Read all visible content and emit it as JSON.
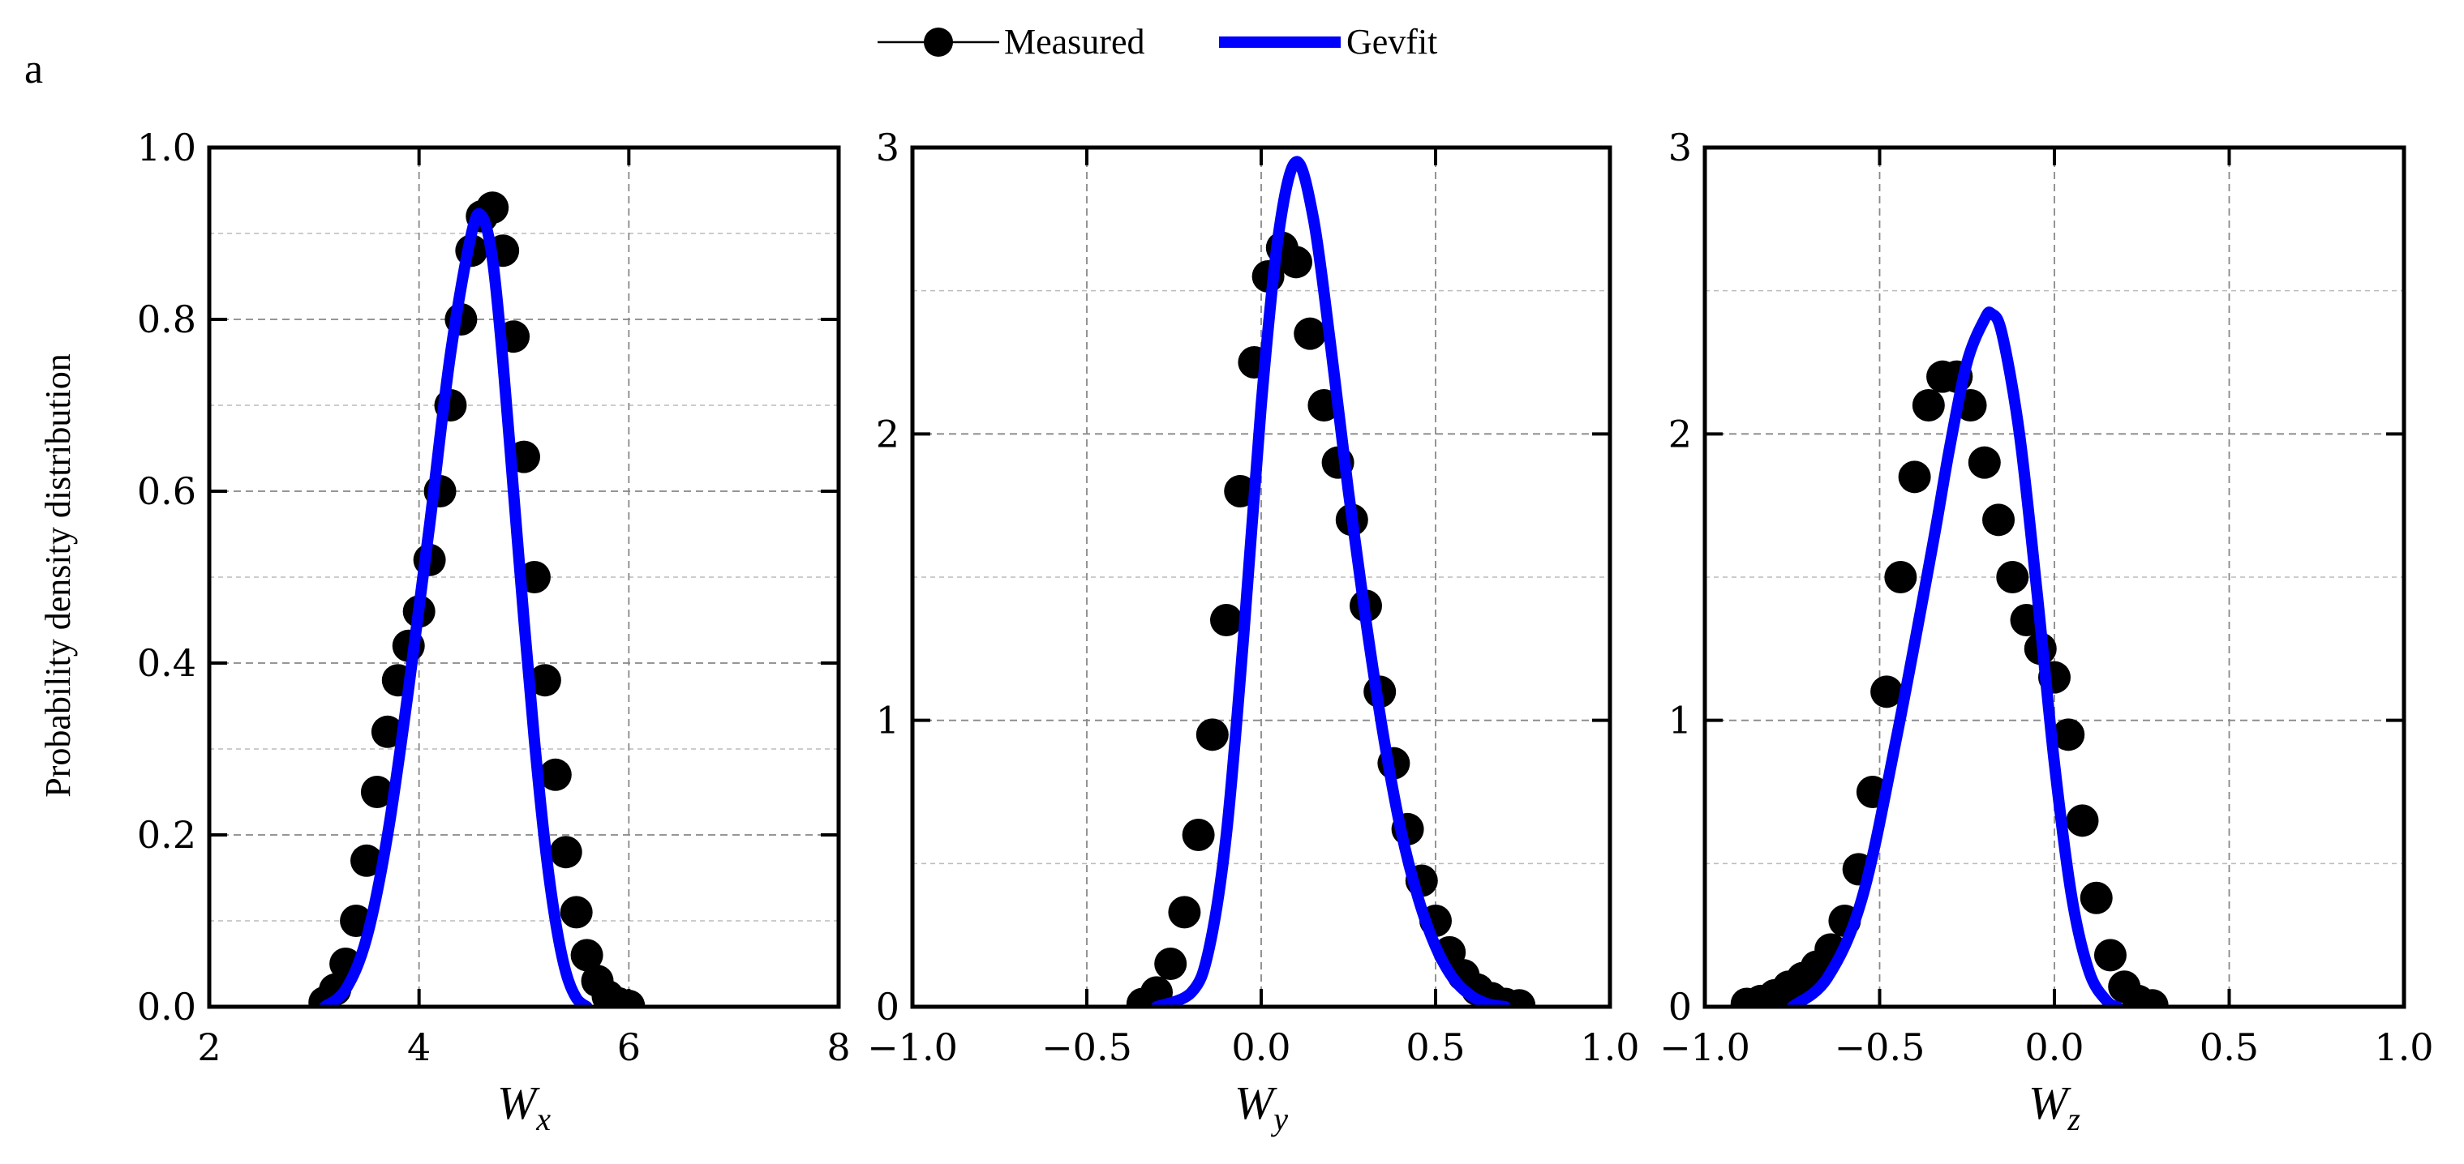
{
  "figure": {
    "panel_label": "a",
    "ylabel": "Probability density distribution",
    "legend": {
      "placement": "top-center",
      "entries": [
        {
          "label": "Measured",
          "marker": "filled-circle",
          "color": "#000000"
        },
        {
          "label": "Gevfit",
          "marker": "thick-line",
          "color": "#0000FF"
        }
      ]
    }
  },
  "chart_data": [
    {
      "type": "line",
      "title": "",
      "xlabel": "W",
      "xlabel_sub": "x",
      "ylabel": "Probability density distribution",
      "xlim": [
        2,
        8
      ],
      "ylim": [
        0,
        1.0
      ],
      "xticks": [
        2,
        4,
        6,
        8
      ],
      "xtick_labels": [
        "2",
        "4",
        "6",
        "8"
      ],
      "yticks": [
        0,
        0.2,
        0.4,
        0.6,
        0.8,
        1.0
      ],
      "ytick_labels": [
        "0.0",
        "0.2",
        "0.4",
        "0.6",
        "0.8",
        "1.0"
      ],
      "yminor": [
        0.1,
        0.3,
        0.5,
        0.7,
        0.9
      ],
      "grid": true,
      "series": [
        {
          "name": "Measured",
          "style": "markers",
          "color": "#000000",
          "x": [
            3.1,
            3.2,
            3.3,
            3.4,
            3.5,
            3.6,
            3.7,
            3.8,
            3.9,
            4.0,
            4.1,
            4.2,
            4.3,
            4.4,
            4.5,
            4.6,
            4.7,
            4.8,
            4.9,
            5.0,
            5.1,
            5.2,
            5.3,
            5.4,
            5.5,
            5.6,
            5.7,
            5.8,
            5.9,
            6.0
          ],
          "y": [
            0.005,
            0.02,
            0.05,
            0.1,
            0.17,
            0.25,
            0.32,
            0.38,
            0.42,
            0.46,
            0.52,
            0.6,
            0.7,
            0.8,
            0.88,
            0.92,
            0.93,
            0.88,
            0.78,
            0.64,
            0.5,
            0.38,
            0.27,
            0.18,
            0.11,
            0.06,
            0.03,
            0.012,
            0.004,
            0.001
          ]
        },
        {
          "name": "Gevfit",
          "style": "line",
          "color": "#0000FF",
          "x": [
            3.1,
            3.3,
            3.5,
            3.7,
            3.9,
            4.1,
            4.3,
            4.5,
            4.6,
            4.7,
            4.8,
            4.9,
            5.0,
            5.1,
            5.2,
            5.3,
            5.4,
            5.5,
            5.6
          ],
          "y": [
            0.0,
            0.02,
            0.08,
            0.2,
            0.37,
            0.56,
            0.76,
            0.9,
            0.92,
            0.87,
            0.75,
            0.6,
            0.45,
            0.31,
            0.19,
            0.1,
            0.04,
            0.01,
            0.0
          ]
        }
      ]
    },
    {
      "type": "line",
      "title": "",
      "xlabel": "W",
      "xlabel_sub": "y",
      "ylabel": "",
      "xlim": [
        -1.0,
        1.0
      ],
      "ylim": [
        0,
        3
      ],
      "xticks": [
        -1.0,
        -0.5,
        0.0,
        0.5,
        1.0
      ],
      "xtick_labels": [
        "−1.0",
        "−0.5",
        "0.0",
        "0.5",
        "1.0"
      ],
      "yticks": [
        0,
        1,
        2,
        3
      ],
      "ytick_labels": [
        "0",
        "1",
        "2",
        "3"
      ],
      "yminor": [
        0.5,
        1.5,
        2.5
      ],
      "grid": true,
      "series": [
        {
          "name": "Measured",
          "style": "markers",
          "color": "#000000",
          "x": [
            -0.34,
            -0.3,
            -0.26,
            -0.22,
            -0.18,
            -0.14,
            -0.1,
            -0.06,
            -0.02,
            0.02,
            0.06,
            0.1,
            0.14,
            0.18,
            0.22,
            0.26,
            0.3,
            0.34,
            0.38,
            0.42,
            0.46,
            0.5,
            0.54,
            0.58,
            0.62,
            0.66,
            0.7,
            0.74
          ],
          "y": [
            0.01,
            0.05,
            0.15,
            0.33,
            0.6,
            0.95,
            1.35,
            1.8,
            2.25,
            2.55,
            2.65,
            2.6,
            2.35,
            2.1,
            1.9,
            1.7,
            1.4,
            1.1,
            0.85,
            0.62,
            0.44,
            0.3,
            0.19,
            0.11,
            0.06,
            0.03,
            0.01,
            0.005
          ]
        },
        {
          "name": "Gevfit",
          "style": "line",
          "color": "#0000FF",
          "x": [
            -0.3,
            -0.2,
            -0.15,
            -0.1,
            -0.05,
            0.0,
            0.05,
            0.1,
            0.15,
            0.2,
            0.25,
            0.3,
            0.35,
            0.4,
            0.45,
            0.5,
            0.55,
            0.6,
            0.65,
            0.7
          ],
          "y": [
            0.0,
            0.05,
            0.2,
            0.6,
            1.3,
            2.1,
            2.7,
            2.95,
            2.75,
            2.3,
            1.8,
            1.35,
            0.95,
            0.62,
            0.38,
            0.21,
            0.1,
            0.04,
            0.01,
            0.0
          ]
        }
      ]
    },
    {
      "type": "line",
      "title": "",
      "xlabel": "W",
      "xlabel_sub": "z",
      "ylabel": "",
      "xlim": [
        -1.0,
        1.0
      ],
      "ylim": [
        0,
        3
      ],
      "xticks": [
        -1.0,
        -0.5,
        0.0,
        0.5,
        1.0
      ],
      "xtick_labels": [
        "−1.0",
        "−0.5",
        "0.0",
        "0.5",
        "1.0"
      ],
      "yticks": [
        0,
        1,
        2,
        3
      ],
      "ytick_labels": [
        "0",
        "1",
        "2",
        "3"
      ],
      "yminor": [
        0.5,
        1.5,
        2.5
      ],
      "grid": true,
      "series": [
        {
          "name": "Measured",
          "style": "markers",
          "color": "#000000",
          "x": [
            -0.88,
            -0.84,
            -0.8,
            -0.76,
            -0.72,
            -0.68,
            -0.64,
            -0.6,
            -0.56,
            -0.52,
            -0.48,
            -0.44,
            -0.4,
            -0.36,
            -0.32,
            -0.28,
            -0.24,
            -0.2,
            -0.16,
            -0.12,
            -0.08,
            -0.04,
            0.0,
            0.04,
            0.08,
            0.12,
            0.16,
            0.2,
            0.24,
            0.28
          ],
          "y": [
            0.01,
            0.02,
            0.04,
            0.07,
            0.1,
            0.14,
            0.2,
            0.3,
            0.48,
            0.75,
            1.1,
            1.5,
            1.85,
            2.1,
            2.2,
            2.2,
            2.1,
            1.9,
            1.7,
            1.5,
            1.35,
            1.25,
            1.15,
            0.95,
            0.65,
            0.38,
            0.18,
            0.07,
            0.02,
            0.005
          ]
        },
        {
          "name": "Gevfit",
          "style": "line",
          "color": "#0000FF",
          "x": [
            -0.75,
            -0.65,
            -0.55,
            -0.45,
            -0.35,
            -0.3,
            -0.25,
            -0.2,
            -0.18,
            -0.15,
            -0.1,
            -0.05,
            0.0,
            0.05,
            0.1,
            0.15,
            0.18
          ],
          "y": [
            0.0,
            0.1,
            0.38,
            0.95,
            1.6,
            1.95,
            2.25,
            2.4,
            2.42,
            2.35,
            2.0,
            1.45,
            0.85,
            0.38,
            0.12,
            0.02,
            0.0
          ]
        }
      ]
    }
  ]
}
